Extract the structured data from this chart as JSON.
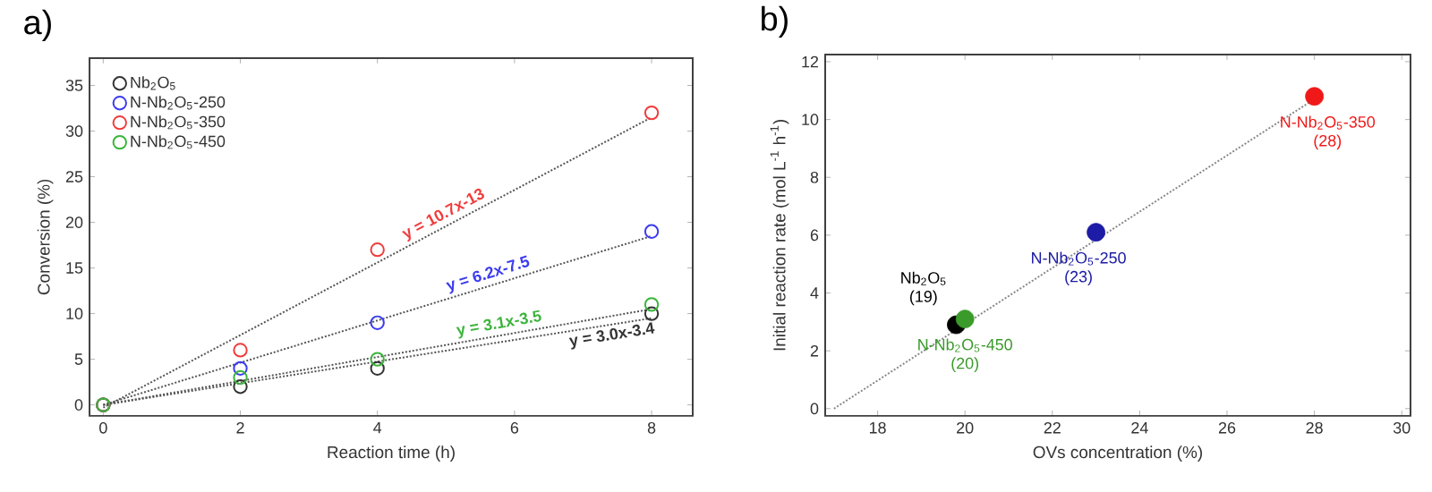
{
  "chart_data": [
    {
      "type": "scatter",
      "title": "a)",
      "xlabel": "Reaction time (h)",
      "ylabel": "Conversion (%)",
      "xlim": [
        -0.2,
        8.6
      ],
      "ylim": [
        -1.2,
        38
      ],
      "xticks": [
        0,
        2,
        4,
        6,
        8
      ],
      "yticks": [
        0,
        5,
        10,
        15,
        20,
        25,
        30,
        35
      ],
      "legend": "top left",
      "marker": "circle",
      "series": [
        {
          "name": "Nb$_{2}$O$_{5}$",
          "color": "#333333",
          "x": [
            0,
            2,
            4,
            8
          ],
          "values": [
            0,
            2,
            4,
            10
          ]
        },
        {
          "name": "N-Nb$_{2}$O$_{5}$-250",
          "color": "#3b3bf0",
          "x": [
            0,
            2,
            4,
            8
          ],
          "values": [
            0,
            4,
            9,
            19
          ]
        },
        {
          "name": "N-Nb$_{2}$O$_{5}$-350",
          "color": "#f03c3c",
          "x": [
            0,
            2,
            4,
            8
          ],
          "values": [
            0,
            6,
            17,
            32
          ]
        },
        {
          "name": "N-Nb$_{2}$O$_{5}$-450",
          "color": "#3cb43c",
          "x": [
            0,
            2,
            4,
            8
          ],
          "values": [
            0,
            3,
            5,
            11
          ]
        },
        {
          "type": "line",
          "color": "#555555",
          "line_style": "dotted",
          "marker": "none",
          "x": [
            0,
            8
          ],
          "values": [
            0,
            9.5
          ]
        },
        {
          "type": "line",
          "color": "#555555",
          "line_style": "dotted",
          "marker": "none",
          "x": [
            0,
            8
          ],
          "values": [
            0,
            18.5
          ]
        },
        {
          "type": "line",
          "color": "#555555",
          "line_style": "dotted",
          "marker": "none",
          "x": [
            0,
            8
          ],
          "values": [
            -0.3,
            31.5
          ]
        },
        {
          "type": "line",
          "color": "#555555",
          "line_style": "dotted",
          "marker": "none",
          "x": [
            0,
            8
          ],
          "values": [
            0,
            10.5
          ]
        }
      ],
      "annotations": [
        "y = 3.0x-3.4",
        "y = 6.2x-7.5",
        "y = 10.7x-13",
        "y = 3.1x-3.5"
      ]
    },
    {
      "type": "scatter",
      "title": "b)",
      "xlabel": "OVs concentration (%)",
      "ylabel": "Initial reaction rate (mol L$^{-1}$ h$^{-1}$)",
      "xlim": [
        16.8,
        30.2
      ],
      "ylim": [
        -0.25,
        12.25
      ],
      "xticks": [
        18,
        20,
        22,
        24,
        26,
        28,
        30
      ],
      "yticks": [
        0,
        2,
        4,
        6,
        8,
        10,
        12
      ],
      "marker": "circle",
      "series": [
        {
          "name": "Nb$_{2}$O$_{5}$",
          "color": "#000000",
          "x": [
            19.8
          ],
          "values": [
            2.9
          ]
        },
        {
          "name": "N-Nb$_{2}$O$_{5}$-250",
          "color": "#1c1ca6",
          "x": [
            23.0
          ],
          "values": [
            6.1
          ]
        },
        {
          "name": "N-Nb$_{2}$O$_{5}$-350",
          "color": "#f01818",
          "x": [
            28.0
          ],
          "values": [
            10.8
          ]
        },
        {
          "name": "N-Nb$_{2}$O$_{5}$-450",
          "color": "#3a9a2a",
          "x": [
            20.0
          ],
          "values": [
            3.1
          ]
        },
        {
          "type": "line",
          "color": "#888888",
          "line_style": "dotted",
          "marker": "none",
          "x": [
            17,
            28.2
          ],
          "values": [
            0,
            10.9
          ]
        }
      ],
      "annotations": [
        "(19)",
        "(23)",
        "(28)",
        "(20)"
      ]
    }
  ]
}
